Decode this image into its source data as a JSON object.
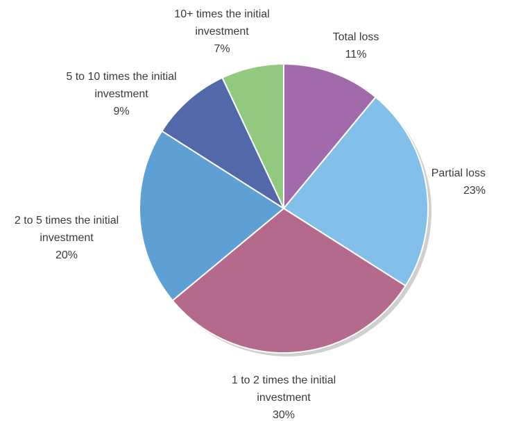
{
  "chart_data": {
    "type": "pie",
    "title": "",
    "slices": [
      {
        "label_lines": [
          "Total loss"
        ],
        "percent_label": "11%",
        "value": 11,
        "color": "#a06aab"
      },
      {
        "label_lines": [
          "Partial loss"
        ],
        "percent_label": "23%",
        "value": 23,
        "color": "#82c0ea"
      },
      {
        "label_lines": [
          "1 to 2 times the initial",
          "investment"
        ],
        "percent_label": "30%",
        "value": 30,
        "color": "#b46a8c"
      },
      {
        "label_lines": [
          "2 to 5 times the initial",
          "investment"
        ],
        "percent_label": "20%",
        "value": 20,
        "color": "#5e9fd4"
      },
      {
        "label_lines": [
          "5 to 10 times the initial",
          "investment"
        ],
        "percent_label": "9%",
        "value": 9,
        "color": "#5268a8"
      },
      {
        "label_lines": [
          "10+ times the initial",
          "investment"
        ],
        "percent_label": "7%",
        "value": 7,
        "color": "#92c97e"
      }
    ],
    "legend": "none",
    "start_angle": "12 o'clock",
    "direction": "clockwise"
  }
}
